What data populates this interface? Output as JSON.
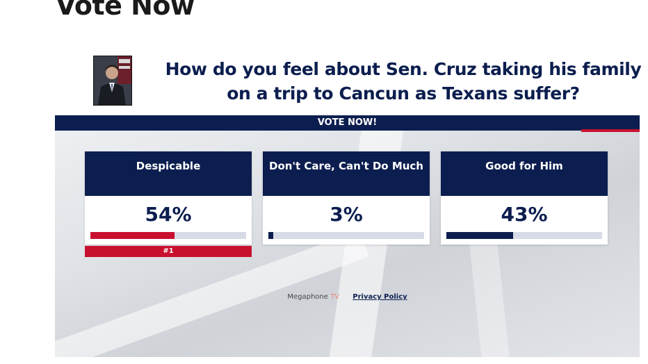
{
  "page": {
    "heading": "Vote Now"
  },
  "poll": {
    "question": "How do you feel about Sen. Cruz taking his family on a trip to Cancun as Texans suffer?",
    "vote_banner": "VOTE NOW!",
    "options": [
      {
        "label": "Despicable",
        "percent_text": "54%",
        "percent": 54,
        "bar_color": "#c8102e"
      },
      {
        "label": "Don't Care, Can't Do Much",
        "percent_text": "3%",
        "percent": 3,
        "bar_color": "#0c1e4f"
      },
      {
        "label": "Good for Him",
        "percent_text": "43%",
        "percent": 43,
        "bar_color": "#0c1e4f"
      }
    ],
    "rank_badge": "#1",
    "footer": {
      "brand_main": "Megaphone",
      "brand_accent": "TV",
      "privacy_link": "Privacy Policy"
    }
  },
  "colors": {
    "navy": "#0c1e4f",
    "red": "#c8102e",
    "track": "#d6dbe6"
  },
  "icons": {
    "thumbnail": "person-photo"
  }
}
